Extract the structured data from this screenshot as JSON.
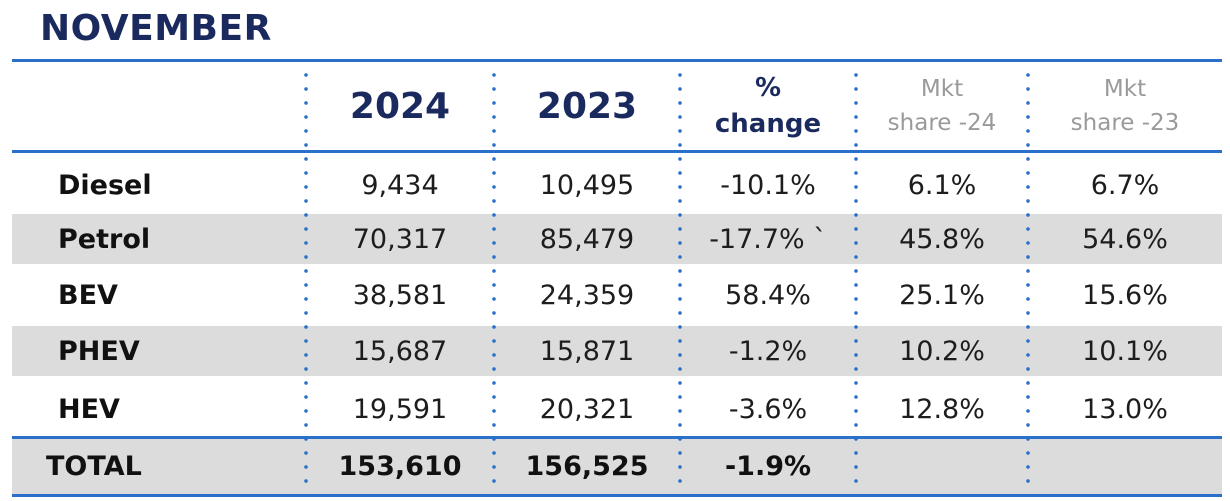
{
  "title": "NOVEMBER",
  "header": {
    "col2024": "2024",
    "col2023": "2023",
    "pct_line1": "%",
    "pct_line2": "change",
    "mkt24_line1": "Mkt",
    "mkt24_line2": "share -24",
    "mkt23_line1": "Mkt",
    "mkt23_line2": "share -23"
  },
  "rows": [
    {
      "label": "Diesel",
      "y2024": "9,434",
      "y2023": "10,495",
      "change": "-10.1%",
      "share24": "6.1%",
      "share23": "6.7%"
    },
    {
      "label": "Petrol",
      "y2024": "70,317",
      "y2023": "85,479",
      "change": "-17.7% `",
      "share24": "45.8%",
      "share23": "54.6%"
    },
    {
      "label": "BEV",
      "y2024": "38,581",
      "y2023": "24,359",
      "change": "58.4%",
      "share24": "25.1%",
      "share23": "15.6%"
    },
    {
      "label": "PHEV",
      "y2024": "15,687",
      "y2023": "15,871",
      "change": "-1.2%",
      "share24": "10.2%",
      "share23": "10.1%"
    },
    {
      "label": "HEV",
      "y2024": "19,591",
      "y2023": "20,321",
      "change": "-3.6%",
      "share24": "12.8%",
      "share23": "13.0%"
    }
  ],
  "total": {
    "label": "TOTAL",
    "y2024": "153,610",
    "y2023": "156,525",
    "change": "-1.9%",
    "share24": "",
    "share23": ""
  },
  "colors": {
    "accent": "#2a6fc9",
    "heading": "#1b2a5e",
    "shade": "#dcdcdc",
    "muted": "#9a9a9a"
  }
}
